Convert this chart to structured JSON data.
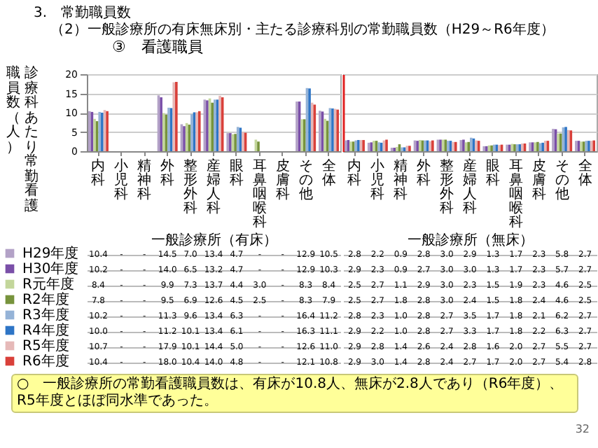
{
  "chart_data": [
    {
      "type": "bar",
      "title": "3.　常勤職員数",
      "subtitle": "（2）一般診療所の有床無床別・主たる診療科別の常勤職員数（H29～R6年度）",
      "ylabel": "診療科あたり常勤看護職員数（人）",
      "xlabel": "一般診療所（有床）",
      "annotations": [
        "③　看護職員",
        "○　一般診療所の常勤看護職員数は、有床が10.8人、無床が2.8人であり（R6年度）、R5年度とほぼ同水準であった。",
        "32"
      ],
      "categories": [
        "内科",
        "小児科",
        "精神科",
        "外科",
        "整形外科",
        "産婦人科",
        "眼科",
        "耳鼻咽喉科",
        "皮膚科",
        "その他",
        "全体"
      ],
      "ylim": [
        0,
        20
      ],
      "yticks": [
        0,
        5,
        10,
        15,
        20
      ],
      "grid": "y",
      "legend": "left",
      "series": [
        {
          "name": "H29年度",
          "color": "#b3a2c7",
          "values": [
            10.4,
            null,
            null,
            14.5,
            7.0,
            13.4,
            4.7,
            null,
            null,
            12.9,
            10.5
          ],
          "value_labels": [
            "10.4",
            "-",
            "-",
            "14.5",
            "7.0",
            "13.4",
            "4.7",
            "-",
            "-",
            "12.9",
            "10.5"
          ]
        },
        {
          "name": "H30年度",
          "color": "#7a4fa8",
          "values": [
            10.2,
            null,
            null,
            14.0,
            6.5,
            13.2,
            4.7,
            null,
            null,
            12.9,
            10.3
          ],
          "value_labels": [
            "10.2",
            "-",
            "-",
            "14.0",
            "6.5",
            "13.2",
            "4.7",
            "-",
            "-",
            "12.9",
            "10.3"
          ]
        },
        {
          "name": "R元年度",
          "color": "#c3d69b",
          "values": [
            8.4,
            null,
            null,
            9.9,
            7.3,
            13.7,
            4.4,
            3.0,
            null,
            8.3,
            8.4
          ],
          "value_labels": [
            "8.4",
            "-",
            "-",
            "9.9",
            "7.3",
            "13.7",
            "4.4",
            "3.0",
            "-",
            "8.3",
            "8.4"
          ]
        },
        {
          "name": "R2年度",
          "color": "#77933c",
          "values": [
            7.8,
            null,
            null,
            9.5,
            6.9,
            12.6,
            4.5,
            2.5,
            null,
            8.3,
            7.9
          ],
          "value_labels": [
            "7.8",
            "-",
            "-",
            "9.5",
            "6.9",
            "12.6",
            "4.5",
            "2.5",
            "-",
            "8.3",
            "7.9"
          ]
        },
        {
          "name": "R3年度",
          "color": "#95b3d7",
          "values": [
            10.2,
            null,
            null,
            11.3,
            9.6,
            13.4,
            6.3,
            null,
            null,
            16.4,
            11.2
          ],
          "value_labels": [
            "10.2",
            "-",
            "-",
            "11.3",
            "9.6",
            "13.4",
            "6.3",
            "-",
            "-",
            "16.4",
            "11.2"
          ]
        },
        {
          "name": "R4年度",
          "color": "#2e75c6",
          "values": [
            10.0,
            null,
            null,
            11.2,
            10.1,
            13.4,
            6.1,
            null,
            null,
            16.3,
            11.1
          ],
          "value_labels": [
            "10.0",
            "-",
            "-",
            "11.2",
            "10.1",
            "13.4",
            "6.1",
            "-",
            "-",
            "16.3",
            "11.1"
          ]
        },
        {
          "name": "R5年度",
          "color": "#e6b9b8",
          "values": [
            10.7,
            null,
            null,
            17.9,
            10.1,
            14.4,
            5.0,
            null,
            null,
            12.6,
            11.0
          ],
          "value_labels": [
            "10.7",
            "-",
            "-",
            "17.9",
            "10.1",
            "14.4",
            "5.0",
            "-",
            "-",
            "12.6",
            "11.0"
          ]
        },
        {
          "name": "R6年度",
          "color": "#d9403a",
          "values": [
            10.4,
            null,
            null,
            18.0,
            10.4,
            14.0,
            4.8,
            null,
            null,
            12.1,
            10.8
          ],
          "value_labels": [
            "10.4",
            "-",
            "-",
            "18.0",
            "10.4",
            "14.0",
            "4.8",
            "-",
            "-",
            "12.1",
            "10.8"
          ]
        }
      ]
    },
    {
      "type": "bar",
      "xlabel": "一般診療所（無床）",
      "categories": [
        "内科",
        "小児科",
        "精神科",
        "外科",
        "整形外科",
        "産婦人科",
        "眼科",
        "耳鼻咽喉科",
        "皮膚科",
        "その他",
        "全体"
      ],
      "ylim": [
        0,
        20
      ],
      "yticks": [
        0,
        5,
        10,
        15,
        20
      ],
      "grid": "y",
      "tick_labels": "x",
      "series": [
        {
          "color": "#b3a2c7",
          "values": [
            2.8,
            2.2,
            0.9,
            2.8,
            3.0,
            2.9,
            1.3,
            1.7,
            2.3,
            5.8,
            2.7
          ],
          "value_labels": [
            "2.8",
            "2.2",
            "0.9",
            "2.8",
            "3.0",
            "2.9",
            "1.3",
            "1.7",
            "2.3",
            "5.8",
            "2.7"
          ]
        },
        {
          "color": "#7a4fa8",
          "values": [
            2.9,
            2.3,
            0.9,
            2.7,
            3.0,
            3.0,
            1.3,
            1.7,
            2.3,
            5.7,
            2.7
          ],
          "value_labels": [
            "2.9",
            "2.3",
            "0.9",
            "2.7",
            "3.0",
            "3.0",
            "1.3",
            "1.7",
            "2.3",
            "5.7",
            "2.7"
          ]
        },
        {
          "color": "#c3d69b",
          "values": [
            2.5,
            2.7,
            1.1,
            2.9,
            3.0,
            2.3,
            1.5,
            1.9,
            2.3,
            4.6,
            2.5
          ],
          "value_labels": [
            "2.5",
            "2.7",
            "1.1",
            "2.9",
            "3.0",
            "2.3",
            "1.5",
            "1.9",
            "2.3",
            "4.6",
            "2.5"
          ]
        },
        {
          "color": "#77933c",
          "values": [
            2.5,
            2.7,
            1.8,
            2.8,
            3.0,
            2.4,
            1.5,
            1.8,
            2.4,
            4.6,
            2.5
          ],
          "value_labels": [
            "2.5",
            "2.7",
            "1.8",
            "2.8",
            "3.0",
            "2.4",
            "1.5",
            "1.8",
            "2.4",
            "4.6",
            "2.5"
          ]
        },
        {
          "color": "#95b3d7",
          "values": [
            2.8,
            2.3,
            1.0,
            2.8,
            2.7,
            3.5,
            1.7,
            1.8,
            2.1,
            6.2,
            2.7
          ],
          "value_labels": [
            "2.8",
            "2.3",
            "1.0",
            "2.8",
            "2.7",
            "3.5",
            "1.7",
            "1.8",
            "2.1",
            "6.2",
            "2.7"
          ]
        },
        {
          "color": "#2e75c6",
          "values": [
            2.9,
            2.2,
            1.0,
            2.8,
            2.7,
            3.3,
            1.7,
            1.8,
            2.2,
            6.3,
            2.7
          ],
          "value_labels": [
            "2.9",
            "2.2",
            "1.0",
            "2.8",
            "2.7",
            "3.3",
            "1.7",
            "1.8",
            "2.2",
            "6.3",
            "2.7"
          ]
        },
        {
          "color": "#e6b9b8",
          "values": [
            2.9,
            2.8,
            1.4,
            2.6,
            2.4,
            2.8,
            1.6,
            2.0,
            2.7,
            5.5,
            2.7
          ],
          "value_labels": [
            "2.9",
            "2.8",
            "1.4",
            "2.6",
            "2.4",
            "2.8",
            "1.6",
            "2.0",
            "2.7",
            "5.5",
            "2.7"
          ]
        },
        {
          "color": "#d9403a",
          "values": [
            2.9,
            3.0,
            1.4,
            2.8,
            2.4,
            2.7,
            1.7,
            2.0,
            2.7,
            5.4,
            2.8
          ],
          "value_labels": [
            "2.9",
            "3.0",
            "1.4",
            "2.8",
            "2.4",
            "2.7",
            "1.7",
            "2.0",
            "2.7",
            "5.4",
            "2.8"
          ]
        }
      ]
    }
  ]
}
